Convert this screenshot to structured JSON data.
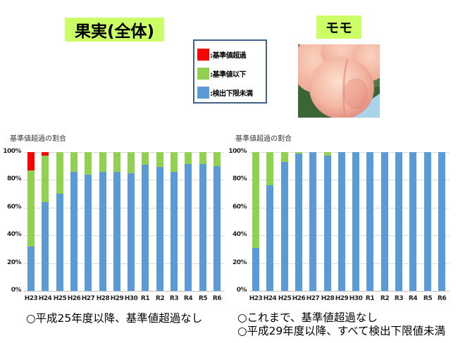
{
  "titles": {
    "main": "果実(全体)",
    "peach": "モモ"
  },
  "legend": {
    "items": [
      {
        "label": ":基準値超過",
        "color": "#ff0000"
      },
      {
        "label": ":基準値以下",
        "color": "#92d050"
      },
      {
        "label": ":検出下限未満",
        "color": "#5b9bd5"
      }
    ]
  },
  "photo": {
    "icon": "peach-photo"
  },
  "colors": {
    "over_limit": "#ff0000",
    "below_limit": "#92d050",
    "below_detection": "#5b9bd5",
    "title_bg": "#ccff66",
    "gridline": "#d9d9d9"
  },
  "chart_data": [
    {
      "type": "bar",
      "stacked": true,
      "title": "基準値超過の割合",
      "xlabel": "",
      "ylabel": "",
      "ylim": [
        0,
        100
      ],
      "yticks": [
        "0%",
        "20%",
        "40%",
        "60%",
        "80%",
        "100%"
      ],
      "grid": true,
      "categories": [
        "H23",
        "H24",
        "H25",
        "H26",
        "H27",
        "H28",
        "H29",
        "H30",
        "R1",
        "R2",
        "R3",
        "R4",
        "R5",
        "R6"
      ],
      "series": [
        {
          "name": "検出下限未満",
          "color": "#5b9bd5",
          "values": [
            32,
            64,
            70,
            86,
            84,
            86,
            86,
            85,
            91,
            89.5,
            86,
            91.5,
            91.5,
            90
          ]
        },
        {
          "name": "基準値以下",
          "color": "#92d050",
          "values": [
            55,
            33.6,
            30,
            14,
            16,
            14,
            14,
            15,
            9,
            10.5,
            14,
            8.5,
            8.5,
            10
          ]
        },
        {
          "name": "基準値超過",
          "color": "#ff0000",
          "values": [
            13,
            2.4,
            0,
            0,
            0,
            0,
            0,
            0,
            0,
            0,
            0,
            0,
            0,
            0
          ]
        }
      ],
      "caption": [
        "○平成25年度以降、基準値超過なし"
      ]
    },
    {
      "type": "bar",
      "stacked": true,
      "title": "基準値超過の割合",
      "xlabel": "",
      "ylabel": "",
      "ylim": [
        0,
        100
      ],
      "yticks": [
        "0%",
        "20%",
        "40%",
        "60%",
        "80%",
        "100%"
      ],
      "grid": true,
      "categories": [
        "H23",
        "H24",
        "H25",
        "H26",
        "H27",
        "H28",
        "H29",
        "H30",
        "R1",
        "R2",
        "R3",
        "R4",
        "R5",
        "R6"
      ],
      "series": [
        {
          "name": "検出下限未満",
          "color": "#5b9bd5",
          "values": [
            31,
            76,
            93,
            99,
            100,
            97.5,
            100,
            100,
            100,
            100,
            100,
            100,
            100,
            100
          ]
        },
        {
          "name": "基準値以下",
          "color": "#92d050",
          "values": [
            69,
            24,
            7,
            1,
            0,
            2.5,
            0,
            0,
            0,
            0,
            0,
            0,
            0,
            0
          ]
        },
        {
          "name": "基準値超過",
          "color": "#ff0000",
          "values": [
            0,
            0,
            0,
            0,
            0,
            0,
            0,
            0,
            0,
            0,
            0,
            0,
            0,
            0
          ]
        }
      ],
      "caption": [
        "○これまで、基準値超過なし",
        "○平成29年度以降、すべて検出下限値未満"
      ]
    }
  ]
}
